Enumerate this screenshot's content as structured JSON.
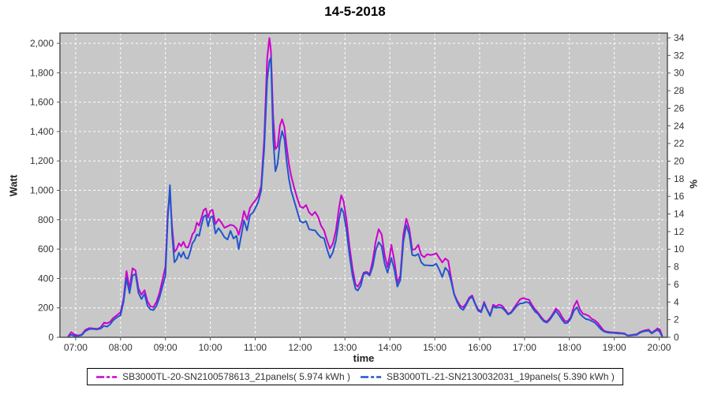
{
  "title": "14-5-2018",
  "chart_data": {
    "type": "line",
    "title": "14-5-2018",
    "xlabel": "time",
    "ylabel_left": "Watt",
    "ylabel_right": "%",
    "legend_position": "bottom",
    "grid": "on",
    "colors": {
      "plot_background": "#c8c8c8",
      "grid_line": "#ffffff",
      "axis_frame": "#545454",
      "tick_text": "#333333",
      "series1": "#cc00cc",
      "series2": "#2255cc"
    },
    "x_ticks": [
      "07:00",
      "08:00",
      "09:00",
      "10:00",
      "11:00",
      "12:00",
      "13:00",
      "14:00",
      "15:00",
      "16:00",
      "17:00",
      "18:00",
      "19:00",
      "20:00"
    ],
    "y_left_ticks": [
      "0",
      "200",
      "400",
      "600",
      "800",
      "1,000",
      "1,200",
      "1,400",
      "1,600",
      "1,800",
      "2,000"
    ],
    "y_right_ticks": [
      "0",
      "2",
      "4",
      "6",
      "8",
      "10",
      "12",
      "14",
      "16",
      "18",
      "20",
      "22",
      "24",
      "26",
      "28",
      "30",
      "32",
      "34"
    ],
    "y_left_range": [
      0,
      2070
    ],
    "y_right_range": [
      0,
      34
    ],
    "x_range": [
      "06:39",
      "20:11"
    ],
    "x": [
      "06:50",
      "06:54",
      "06:58",
      "07:03",
      "07:08",
      "07:13",
      "07:18",
      "07:23",
      "07:28",
      "07:33",
      "07:38",
      "07:42",
      "07:46",
      "07:50",
      "07:55",
      "08:00",
      "08:04",
      "08:08",
      "08:12",
      "08:16",
      "08:20",
      "08:24",
      "08:28",
      "08:32",
      "08:36",
      "08:40",
      "08:44",
      "08:48",
      "08:52",
      "08:56",
      "09:00",
      "09:03",
      "09:06",
      "09:09",
      "09:12",
      "09:15",
      "09:18",
      "09:21",
      "09:24",
      "09:27",
      "09:30",
      "09:33",
      "09:36",
      "09:39",
      "09:42",
      "09:45",
      "09:48",
      "09:51",
      "09:54",
      "09:57",
      "10:00",
      "10:03",
      "10:07",
      "10:11",
      "10:15",
      "10:19",
      "10:23",
      "10:27",
      "10:31",
      "10:35",
      "10:38",
      "10:42",
      "10:45",
      "10:49",
      "10:53",
      "10:57",
      "11:00",
      "11:04",
      "11:08",
      "11:12",
      "11:16",
      "11:19",
      "11:21",
      "11:24",
      "11:27",
      "11:30",
      "11:33",
      "11:36",
      "11:39",
      "11:42",
      "11:45",
      "11:48",
      "11:52",
      "11:56",
      "12:00",
      "12:04",
      "12:08",
      "12:12",
      "12:16",
      "12:20",
      "12:24",
      "12:28",
      "12:32",
      "12:36",
      "12:40",
      "12:44",
      "12:48",
      "12:52",
      "12:55",
      "12:58",
      "13:02",
      "13:06",
      "13:10",
      "13:14",
      "13:17",
      "13:21",
      "13:25",
      "13:29",
      "13:33",
      "13:37",
      "13:41",
      "13:45",
      "13:49",
      "13:53",
      "13:57",
      "14:00",
      "14:02",
      "14:06",
      "14:10",
      "14:14",
      "14:18",
      "14:22",
      "14:26",
      "14:30",
      "14:34",
      "14:38",
      "14:42",
      "14:46",
      "14:50",
      "14:54",
      "14:58",
      "15:02",
      "15:06",
      "15:10",
      "15:14",
      "15:18",
      "15:22",
      "15:26",
      "15:30",
      "15:34",
      "15:38",
      "15:42",
      "15:46",
      "15:50",
      "15:54",
      "15:58",
      "16:02",
      "16:06",
      "16:10",
      "16:14",
      "16:18",
      "16:22",
      "16:26",
      "16:30",
      "16:34",
      "16:38",
      "16:42",
      "16:46",
      "16:50",
      "16:54",
      "16:58",
      "17:02",
      "17:06",
      "17:10",
      "17:14",
      "17:18",
      "17:22",
      "17:26",
      "17:30",
      "17:34",
      "17:38",
      "17:42",
      "17:46",
      "17:50",
      "17:54",
      "17:58",
      "18:02",
      "18:06",
      "18:10",
      "18:14",
      "18:18",
      "18:22",
      "18:26",
      "18:30",
      "18:34",
      "18:38",
      "18:42",
      "18:46",
      "18:50",
      "18:54",
      "18:58",
      "19:02",
      "19:06",
      "19:10",
      "19:14",
      "19:18",
      "19:22",
      "19:26",
      "19:30",
      "19:34",
      "19:38",
      "19:42",
      "19:46",
      "19:50",
      "19:54",
      "19:58",
      "20:01",
      "20:04"
    ],
    "series": [
      {
        "name": "SB3000TL-20-SN2100578613_21panels( 5.974 kWh )",
        "energy_kwh": "5.974",
        "color": "#cc00cc",
        "values": [
          5,
          35,
          20,
          12,
          18,
          50,
          62,
          60,
          57,
          65,
          100,
          95,
          105,
          130,
          150,
          170,
          260,
          450,
          330,
          470,
          455,
          330,
          290,
          320,
          245,
          210,
          205,
          240,
          300,
          390,
          480,
          850,
          980,
          750,
          580,
          600,
          640,
          620,
          650,
          615,
          610,
          650,
          700,
          720,
          780,
          760,
          810,
          865,
          876,
          815,
          860,
          867,
          770,
          805,
          780,
          745,
          755,
          765,
          760,
          740,
          697,
          780,
          859,
          800,
          880,
          912,
          930,
          960,
          1030,
          1350,
          1900,
          2036,
          1950,
          1500,
          1280,
          1300,
          1440,
          1484,
          1430,
          1300,
          1180,
          1100,
          1020,
          950,
          890,
          880,
          900,
          850,
          830,
          853,
          820,
          760,
          727,
          660,
          603,
          640,
          730,
          880,
          967,
          930,
          800,
          620,
          470,
          360,
          345,
          380,
          440,
          445,
          430,
          520,
          650,
          736,
          700,
          560,
          478,
          560,
          629,
          520,
          372,
          420,
          700,
          807,
          740,
          594,
          600,
          629,
          560,
          545,
          565,
          560,
          563,
          572,
          540,
          509,
          536,
          520,
          400,
          294,
          250,
          215,
          204,
          230,
          270,
          285,
          230,
          190,
          177,
          240,
          190,
          150,
          222,
          210,
          222,
          215,
          190,
          160,
          170,
          200,
          230,
          258,
          267,
          260,
          255,
          220,
          190,
          168,
          140,
          115,
          106,
          130,
          160,
          195,
          177,
          140,
          110,
          110,
          140,
          210,
          249,
          190,
          160,
          155,
          145,
          125,
          115,
          97,
          70,
          45,
          38,
          35,
          34,
          32,
          30,
          28,
          25,
          12,
          15,
          18,
          20,
          35,
          43,
          48,
          52,
          30,
          45,
          61,
          52,
          8
        ]
      },
      {
        "name": "SB3000TL-21-SN2130032031_19panels( 5.390 kWh )",
        "energy_kwh": "5.390",
        "color": "#2255cc",
        "values": [
          2,
          18,
          8,
          8,
          14,
          42,
          55,
          57,
          53,
          58,
          78,
          72,
          88,
          115,
          135,
          150,
          240,
          400,
          300,
          420,
          430,
          300,
          260,
          295,
          215,
          190,
          185,
          213,
          270,
          345,
          420,
          800,
          1035,
          700,
          510,
          530,
          575,
          545,
          580,
          540,
          535,
          580,
          640,
          660,
          700,
          690,
          760,
          820,
          832,
          755,
          815,
          823,
          706,
          742,
          715,
          680,
          665,
          724,
          672,
          690,
          600,
          710,
          796,
          727,
          830,
          849,
          876,
          920,
          1000,
          1280,
          1750,
          1880,
          1902,
          1350,
          1130,
          1180,
          1330,
          1404,
          1350,
          1200,
          1080,
          1000,
          930,
          860,
          790,
          780,
          790,
          735,
          730,
          727,
          700,
          680,
          674,
          600,
          540,
          580,
          660,
          800,
          878,
          850,
          730,
          560,
          420,
          330,
          318,
          350,
          430,
          437,
          420,
          480,
          590,
          647,
          620,
          500,
          440,
          500,
          540,
          460,
          345,
          390,
          650,
          763,
          700,
          560,
          555,
          567,
          510,
          490,
          490,
          488,
          488,
          500,
          460,
          410,
          473,
          450,
          380,
          290,
          240,
          200,
          186,
          220,
          260,
          275,
          225,
          180,
          170,
          230,
          185,
          145,
          210,
          200,
          204,
          200,
          180,
          155,
          165,
          190,
          215,
          230,
          231,
          240,
          235,
          205,
          175,
          160,
          130,
          108,
          100,
          120,
          150,
          180,
          151,
          120,
          95,
          100,
          130,
          180,
          204,
          160,
          140,
          124,
          120,
          110,
          100,
          79,
          55,
          40,
          33,
          30,
          30,
          28,
          25,
          25,
          22,
          10,
          12,
          15,
          16,
          30,
          38,
          42,
          45,
          26,
          40,
          50,
          34,
          5
        ]
      }
    ]
  }
}
